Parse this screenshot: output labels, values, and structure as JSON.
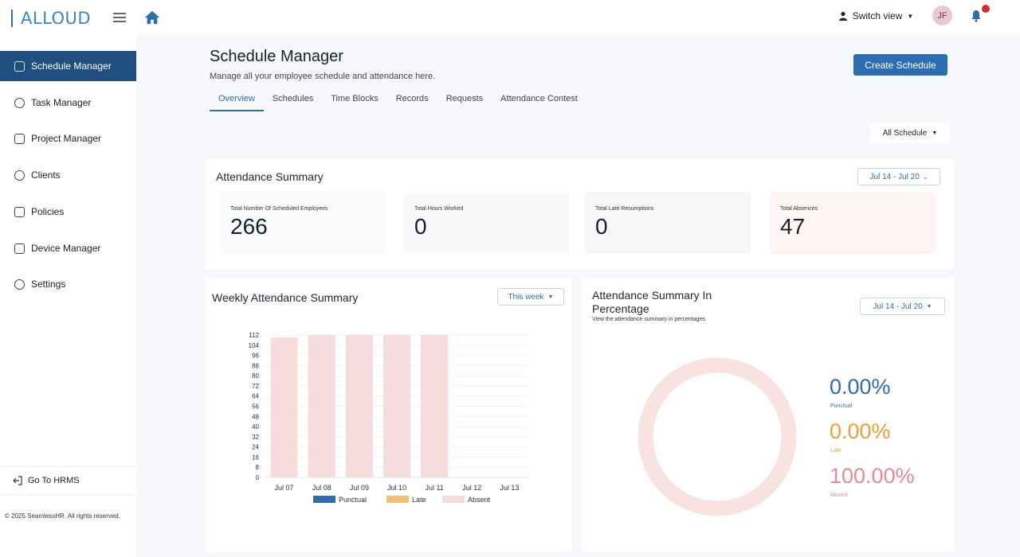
{
  "app": {
    "logo": "ALLOUD"
  },
  "topbar": {
    "switch_view": "Switch view",
    "avatar_initials": "JF"
  },
  "sidebar": {
    "items": [
      {
        "label": "Schedule Manager",
        "active": true
      },
      {
        "label": "Task Manager"
      },
      {
        "label": "Project Manager"
      },
      {
        "label": "Clients"
      },
      {
        "label": "Policies"
      },
      {
        "label": "Device Manager"
      },
      {
        "label": "Settings"
      }
    ],
    "goto": "Go To HRMS",
    "copyright": "© 2025 SeamlessHR. All rights reserved."
  },
  "page": {
    "title": "Schedule Manager",
    "subtitle": "Manage all your employee schedule and attendance here.",
    "create_button": "Create Schedule",
    "filter": "All Schedule"
  },
  "tabs": [
    "Overview",
    "Schedules",
    "Time Blocks",
    "Records",
    "Requests",
    "Attendance Contest"
  ],
  "attendance": {
    "title": "Attendance Summary",
    "range": "Jul 14 - Jul 20",
    "stats": [
      {
        "label": "Total Number Of Scheduled Employees",
        "value": "266"
      },
      {
        "label": "Total Hours Worked",
        "value": "0"
      },
      {
        "label": "Total Late Resumptions",
        "value": "0"
      },
      {
        "label": "Total Absences",
        "value": "47"
      }
    ]
  },
  "weekly": {
    "title": "Weekly Attendance Summary",
    "range": "This week"
  },
  "percentage": {
    "title_line1": "Attendance Summary In",
    "title_line2": "Percentage",
    "subtitle": "View the attendance summary in percentages",
    "range": "Jul 14 - Jul 20",
    "items": [
      {
        "value": "0.00%",
        "label": "Punctual",
        "color": "#2d6eb2"
      },
      {
        "value": "0.00%",
        "label": "Late",
        "color": "#f0a030"
      },
      {
        "value": "100.00%",
        "label": "Absent",
        "color": "#e58a98"
      }
    ]
  },
  "chart_data": {
    "type": "bar",
    "categories": [
      "Jul 07",
      "Jul 08",
      "Jul 09",
      "Jul 10",
      "Jul 11",
      "Jul 12",
      "Jul 13"
    ],
    "yticks": [
      "0",
      "8",
      "16",
      "24",
      "32",
      "40",
      "48",
      "56",
      "64",
      "72",
      "80",
      "88",
      "96",
      "104",
      "112"
    ],
    "ylim": [
      0,
      112
    ],
    "series": [
      {
        "name": "Punctual",
        "color": "#2d6eb2",
        "values": [
          0,
          0,
          0,
          0,
          0,
          0,
          0
        ]
      },
      {
        "name": "Late",
        "color": "#f3c07a",
        "values": [
          0,
          0,
          0,
          0,
          0,
          0,
          0
        ]
      },
      {
        "name": "Absent",
        "color": "#f6dcdc",
        "values": [
          110,
          112,
          112,
          112,
          112,
          0,
          0
        ]
      }
    ]
  }
}
